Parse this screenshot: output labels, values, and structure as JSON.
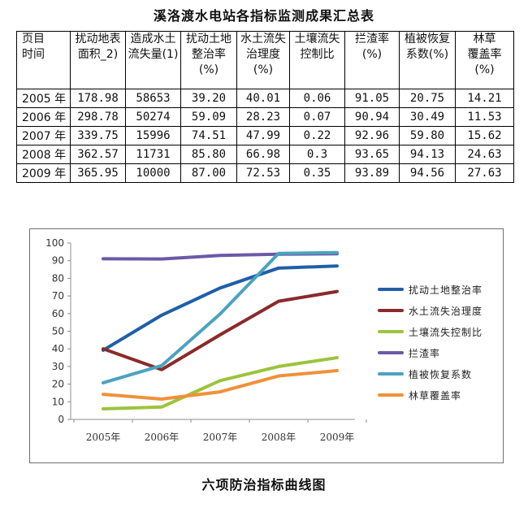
{
  "table": {
    "title": "溪洛渡水电站各指标监测成果汇总表",
    "headers": [
      "页目\n时间",
      "扰动地表\n面积_2)",
      "造成水土\n流失量(1)",
      "扰动土地\n整治率\n(%)",
      "水土流失\n治理度\n(%)",
      "土壤流失\n控制比",
      "拦渣率\n(%)",
      "植被恢复\n系数(%)",
      "林草\n覆盖率\n(%)"
    ],
    "rows": [
      [
        "2005 年",
        "178.98",
        "58653",
        "39.20",
        "40.01",
        "0.06",
        "91.05",
        "20.75",
        "14.21"
      ],
      [
        "2006 年",
        "298.78",
        "50274",
        "59.09",
        "28.23",
        "0.07",
        "90.94",
        "30.49",
        "11.53"
      ],
      [
        "2007 年",
        "339.75",
        "15996",
        "74.51",
        "47.99",
        "0.22",
        "92.96",
        "59.80",
        "15.62"
      ],
      [
        "2008 年",
        "362.57",
        "11731",
        "85.80",
        "66.98",
        "0.3",
        "93.65",
        "94.13",
        "24.63"
      ],
      [
        "2009 年",
        "365.95",
        "10000",
        "87.00",
        "72.53",
        "0.35",
        "93.89",
        "94.56",
        "27.63"
      ]
    ]
  },
  "chart_data": {
    "type": "line",
    "title": "",
    "caption": "六项防治指标曲线图",
    "categories": [
      "2005年",
      "2006年",
      "2007年",
      "2008年",
      "2009年"
    ],
    "ylim": [
      0,
      100
    ],
    "yticks": [
      "0",
      "10",
      "20",
      "30",
      "40",
      "50",
      "60",
      "70",
      "80",
      "90",
      "100"
    ],
    "grid": false,
    "legend_position": "right",
    "series": [
      {
        "name": "扰动土地整治率",
        "color": "#1f5fa8",
        "values": [
          39.2,
          59.09,
          74.51,
          85.8,
          87.0
        ]
      },
      {
        "name": "水土流失治理度",
        "color": "#8b2a2a",
        "values": [
          40.01,
          28.23,
          47.99,
          66.98,
          72.53
        ]
      },
      {
        "name": "土壤流失控制比",
        "color": "#9cc43c",
        "values": [
          6,
          7,
          22,
          30,
          35
        ]
      },
      {
        "name": "拦渣率",
        "color": "#6a5aa8",
        "values": [
          91.05,
          90.94,
          92.96,
          93.65,
          93.89
        ]
      },
      {
        "name": "植被恢复系数",
        "color": "#4aa3bf",
        "values": [
          20.75,
          30.49,
          59.8,
          94.13,
          94.56
        ]
      },
      {
        "name": "林草覆盖率",
        "color": "#f0913a",
        "values": [
          14.21,
          11.53,
          15.62,
          24.63,
          27.63
        ]
      }
    ]
  }
}
